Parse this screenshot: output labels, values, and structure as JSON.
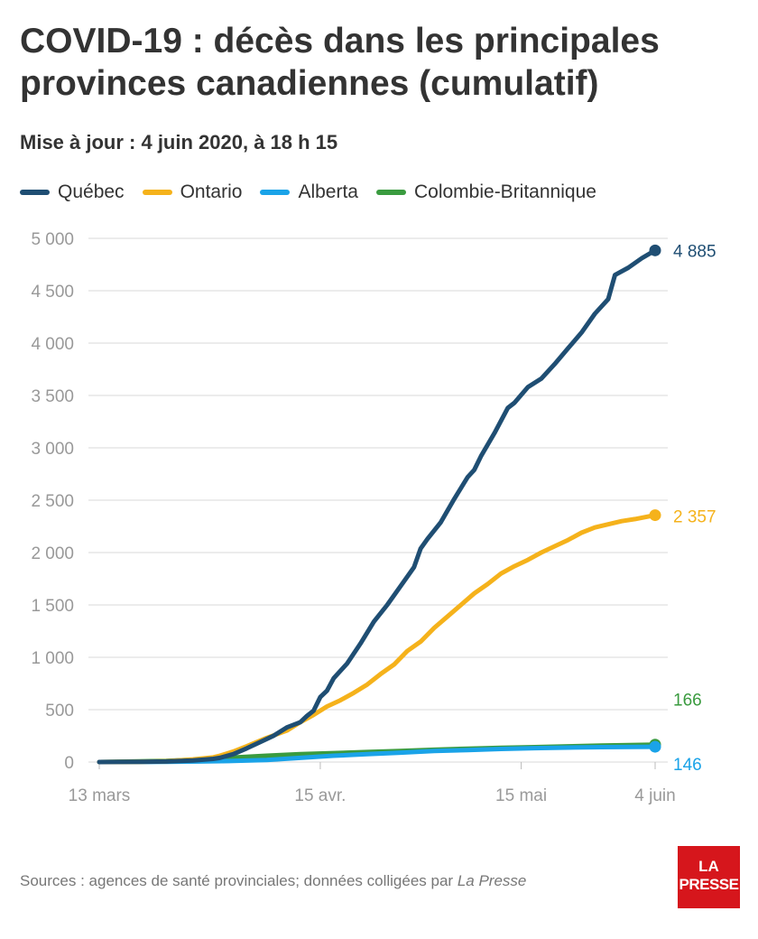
{
  "header": {
    "title": "COVID-19 : décès dans les principales provinces canadiennes (cumulatif)",
    "subtitle": "Mise à jour : 4 juin 2020, à 18 h 15"
  },
  "footer": {
    "source_prefix": "Sources : agences de santé provinciales; données colligées par ",
    "source_italic": "La Presse",
    "logo_line1": "LA",
    "logo_line2": "PRESSE"
  },
  "colors": {
    "quebec": "#1f4e73",
    "ontario": "#f5b21b",
    "alberta": "#1aa3e8",
    "bc": "#3a9b3f",
    "grid": "#d8d8d8",
    "axis_text": "#999999"
  },
  "chart_data": {
    "type": "line",
    "title": "COVID-19 : décès dans les principales provinces canadiennes (cumulatif)",
    "xlabel": "",
    "ylabel": "",
    "xlim": [
      0,
      83
    ],
    "ylim": [
      0,
      5000
    ],
    "x_ticks": [
      {
        "x": 0,
        "label": "13 mars"
      },
      {
        "x": 33,
        "label": "15 avr."
      },
      {
        "x": 63,
        "label": "15 mai"
      },
      {
        "x": 83,
        "label": "4 juin"
      }
    ],
    "y_ticks": [
      {
        "value": 0,
        "label": "0"
      },
      {
        "value": 500,
        "label": "500"
      },
      {
        "value": 1000,
        "label": "1 000"
      },
      {
        "value": 1500,
        "label": "1 500"
      },
      {
        "value": 2000,
        "label": "2 000"
      },
      {
        "value": 2500,
        "label": "2 500"
      },
      {
        "value": 3000,
        "label": "3 000"
      },
      {
        "value": 3500,
        "label": "3 500"
      },
      {
        "value": 4000,
        "label": "4 000"
      },
      {
        "value": 4500,
        "label": "4 500"
      },
      {
        "value": 5000,
        "label": "5 000"
      }
    ],
    "grid": true,
    "legend_position": "top",
    "series": [
      {
        "name": "Québec",
        "color_key": "quebec",
        "end_label": "4 885",
        "points": [
          [
            0,
            0
          ],
          [
            6,
            2
          ],
          [
            10,
            5
          ],
          [
            14,
            15
          ],
          [
            17,
            30
          ],
          [
            18,
            40
          ],
          [
            20,
            75
          ],
          [
            22,
            130
          ],
          [
            24,
            190
          ],
          [
            26,
            250
          ],
          [
            28,
            330
          ],
          [
            30,
            380
          ],
          [
            31,
            440
          ],
          [
            32,
            490
          ],
          [
            33,
            620
          ],
          [
            34,
            680
          ],
          [
            35,
            800
          ],
          [
            37,
            940
          ],
          [
            39,
            1130
          ],
          [
            41,
            1340
          ],
          [
            43,
            1500
          ],
          [
            45,
            1680
          ],
          [
            47,
            1860
          ],
          [
            48,
            2040
          ],
          [
            49,
            2130
          ],
          [
            51,
            2290
          ],
          [
            53,
            2510
          ],
          [
            55,
            2720
          ],
          [
            56,
            2790
          ],
          [
            57,
            2920
          ],
          [
            59,
            3140
          ],
          [
            61,
            3380
          ],
          [
            62,
            3430
          ],
          [
            64,
            3580
          ],
          [
            66,
            3660
          ],
          [
            68,
            3800
          ],
          [
            70,
            3950
          ],
          [
            72,
            4100
          ],
          [
            74,
            4280
          ],
          [
            76,
            4420
          ],
          [
            77,
            4650
          ],
          [
            79,
            4720
          ],
          [
            81,
            4810
          ],
          [
            83,
            4885
          ]
        ]
      },
      {
        "name": "Ontario",
        "color_key": "ontario",
        "end_label": "2 357",
        "points": [
          [
            0,
            0
          ],
          [
            6,
            3
          ],
          [
            10,
            8
          ],
          [
            14,
            25
          ],
          [
            17,
            45
          ],
          [
            18,
            60
          ],
          [
            20,
            100
          ],
          [
            22,
            150
          ],
          [
            25,
            230
          ],
          [
            28,
            300
          ],
          [
            30,
            380
          ],
          [
            32,
            450
          ],
          [
            34,
            530
          ],
          [
            36,
            590
          ],
          [
            38,
            660
          ],
          [
            40,
            740
          ],
          [
            42,
            840
          ],
          [
            44,
            930
          ],
          [
            46,
            1060
          ],
          [
            48,
            1150
          ],
          [
            50,
            1280
          ],
          [
            52,
            1390
          ],
          [
            54,
            1500
          ],
          [
            56,
            1610
          ],
          [
            58,
            1700
          ],
          [
            60,
            1800
          ],
          [
            62,
            1870
          ],
          [
            64,
            1930
          ],
          [
            66,
            2000
          ],
          [
            68,
            2060
          ],
          [
            70,
            2120
          ],
          [
            72,
            2190
          ],
          [
            74,
            2240
          ],
          [
            76,
            2270
          ],
          [
            78,
            2300
          ],
          [
            80,
            2320
          ],
          [
            83,
            2357
          ]
        ]
      },
      {
        "name": "Alberta",
        "color_key": "alberta",
        "end_label": "146",
        "points": [
          [
            0,
            0
          ],
          [
            10,
            2
          ],
          [
            15,
            5
          ],
          [
            20,
            10
          ],
          [
            25,
            20
          ],
          [
            30,
            40
          ],
          [
            35,
            60
          ],
          [
            40,
            75
          ],
          [
            45,
            90
          ],
          [
            50,
            105
          ],
          [
            55,
            115
          ],
          [
            60,
            125
          ],
          [
            65,
            133
          ],
          [
            70,
            138
          ],
          [
            75,
            142
          ],
          [
            80,
            144
          ],
          [
            83,
            146
          ]
        ]
      },
      {
        "name": "Colombie-Britannique",
        "color_key": "bc",
        "end_label": "166",
        "points": [
          [
            0,
            0
          ],
          [
            5,
            5
          ],
          [
            10,
            10
          ],
          [
            15,
            25
          ],
          [
            18,
            38
          ],
          [
            20,
            43
          ],
          [
            25,
            60
          ],
          [
            30,
            75
          ],
          [
            35,
            85
          ],
          [
            40,
            96
          ],
          [
            45,
            105
          ],
          [
            50,
            117
          ],
          [
            55,
            128
          ],
          [
            60,
            135
          ],
          [
            65,
            142
          ],
          [
            70,
            150
          ],
          [
            75,
            158
          ],
          [
            80,
            163
          ],
          [
            83,
            166
          ]
        ]
      }
    ]
  }
}
